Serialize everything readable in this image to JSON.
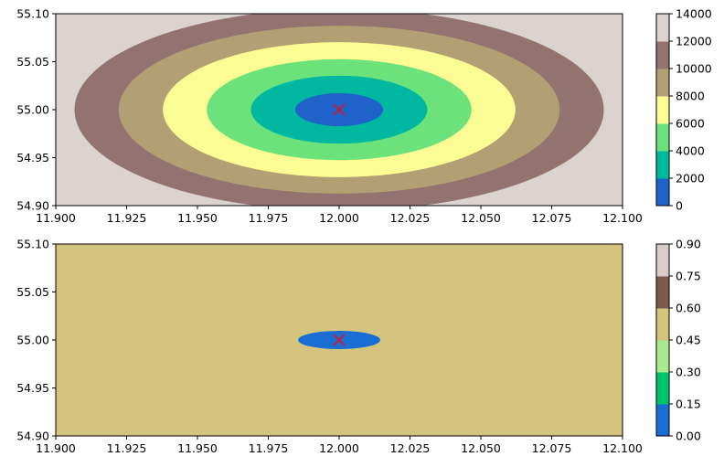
{
  "chart_data": [
    {
      "type": "contourf",
      "title": "",
      "xlabel": "",
      "ylabel": "",
      "xlim": [
        11.9,
        12.1
      ],
      "ylim": [
        54.9,
        55.1
      ],
      "x_ticks": [
        "11.900",
        "11.925",
        "11.950",
        "11.975",
        "12.000",
        "12.025",
        "12.050",
        "12.075",
        "12.100"
      ],
      "y_ticks": [
        "54.90",
        "54.95",
        "55.00",
        "55.05",
        "55.10"
      ],
      "center_marker": {
        "x": 12.0,
        "y": 55.0,
        "symbol": "x",
        "color": "#e8101a"
      },
      "levels": [
        0,
        2000,
        4000,
        6000,
        8000,
        10000,
        12000,
        14000
      ],
      "colorbar_ticks": [
        "0",
        "2000",
        "4000",
        "6000",
        "8000",
        "10000",
        "12000",
        "14000"
      ],
      "level_colors": [
        "#1f62c9",
        "#00b8a0",
        "#6ce27a",
        "#fcfc94",
        "#b39f74",
        "#927370",
        "#dcd3d1"
      ],
      "contour_semi_axes": [
        {
          "upper_level": 2000,
          "x_semi": 0.0155,
          "y_semi": 0.0172
        },
        {
          "upper_level": 4000,
          "x_semi": 0.0311,
          "y_semi": 0.0354
        },
        {
          "upper_level": 6000,
          "x_semi": 0.0467,
          "y_semi": 0.0526
        },
        {
          "upper_level": 8000,
          "x_semi": 0.0622,
          "y_semi": 0.0703
        },
        {
          "upper_level": 10000,
          "x_semi": 0.0778,
          "y_semi": 0.0875
        },
        {
          "upper_level": 12000,
          "x_semi": 0.0934,
          "y_semi": 0.1053
        }
      ]
    },
    {
      "type": "contourf",
      "title": "",
      "xlabel": "",
      "ylabel": "",
      "xlim": [
        11.9,
        12.1
      ],
      "ylim": [
        54.9,
        55.1
      ],
      "x_ticks": [
        "11.900",
        "11.925",
        "11.950",
        "11.975",
        "12.000",
        "12.025",
        "12.050",
        "12.075",
        "12.100"
      ],
      "y_ticks": [
        "54.90",
        "54.95",
        "55.00",
        "55.05",
        "55.10"
      ],
      "center_marker": {
        "x": 12.0,
        "y": 55.0,
        "symbol": "x",
        "color": "#e8101a"
      },
      "levels": [
        0,
        0.15,
        0.3,
        0.45,
        0.6,
        0.75,
        0.9
      ],
      "colorbar_ticks": [
        "0.00",
        "0.15",
        "0.30",
        "0.45",
        "0.60",
        "0.75",
        "0.90"
      ],
      "level_colors": [
        "#1a6dd3",
        "#00c26e",
        "#a9e88c",
        "#d4c47d",
        "#7a5a4b",
        "#d8ccca"
      ],
      "contour_semi_axes": [
        {
          "upper_level": 0.15,
          "x_semi": 0.0145,
          "y_semi": 0.0095
        },
        {
          "upper_level": 0.3,
          "x_semi": 0.0065,
          "y_semi": 0.0038
        },
        {
          "upper_level": 0.45,
          "x_semi": 0.0035,
          "y_semi": 0.0022
        }
      ]
    }
  ]
}
